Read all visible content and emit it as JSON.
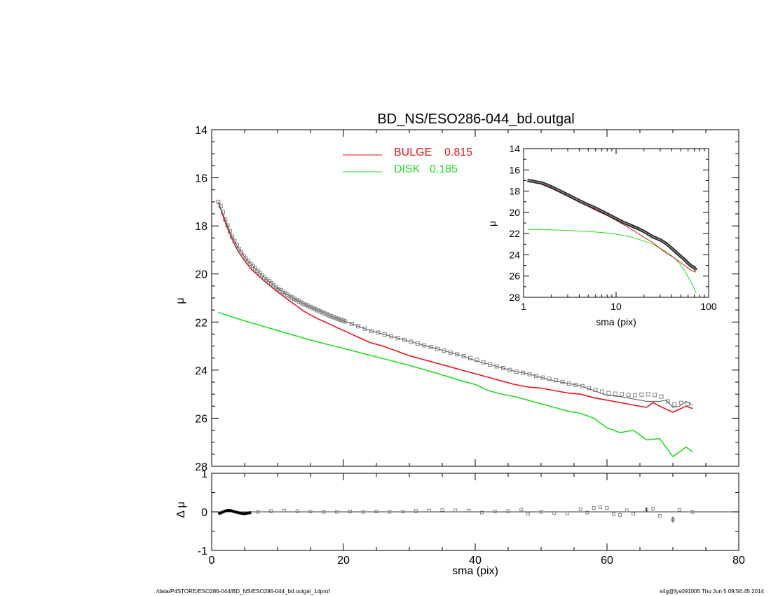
{
  "title": "BD_NS/ESO286-044_bd.outgal",
  "footer": {
    "left": "/data/P4STORE/ESO286-044/BD_NS/ESO286-044_bd.outgal_1dprof",
    "right": "s4g@fys091005  Thu Jun  5 09:56:45 2014"
  },
  "colors": {
    "bulge": "#e8141c",
    "disk": "#22dd22",
    "data": "#777777",
    "total": "#555555"
  },
  "chart_data": [
    {
      "id": "main-profile",
      "type": "line",
      "ylabel": "μ",
      "xlim": [
        0,
        80
      ],
      "ylim": [
        28,
        14
      ],
      "ytick_labels": [
        "14",
        "16",
        "18",
        "20",
        "22",
        "24",
        "26",
        "28"
      ],
      "legend": {
        "placement": "top-center",
        "entries": [
          {
            "label": "BULGE",
            "value": "0.815"
          },
          {
            "label": "DISK",
            "value": "0.185"
          }
        ]
      },
      "observed": {
        "x": [
          1.0,
          1.5,
          2.0,
          3.0,
          4.0,
          5.0,
          6.0,
          8.0,
          10.0,
          12.0,
          14.0,
          16.0,
          18.0,
          20.0,
          22.0,
          24.0,
          26.0,
          28.0,
          30.0,
          32.0,
          34.0,
          36.0,
          38.0,
          40.0,
          42.0,
          44.0,
          46.0,
          48.0,
          50.0,
          52.0,
          54.0,
          56.0,
          58.0,
          60.0,
          62.0,
          64.0,
          66.0,
          68.0,
          70.0,
          71.0,
          73.0
        ],
        "mu": [
          17.0,
          17.25,
          17.7,
          18.4,
          18.9,
          19.3,
          19.6,
          20.15,
          20.6,
          20.95,
          21.25,
          21.5,
          21.75,
          21.95,
          22.15,
          22.35,
          22.5,
          22.65,
          22.8,
          22.95,
          23.1,
          23.25,
          23.4,
          23.55,
          23.75,
          23.9,
          24.05,
          24.15,
          24.3,
          24.4,
          24.55,
          24.65,
          24.8,
          24.95,
          25.0,
          25.05,
          25.0,
          25.05,
          25.45,
          25.35,
          25.45
        ]
      },
      "total_model": {
        "x": [
          1.0,
          2.0,
          3.0,
          4.0,
          5.0,
          6.0,
          8.0,
          10.0,
          12.0,
          14.0,
          16.0,
          18.0,
          20.0,
          22.0,
          24.0,
          26.0,
          28.0,
          30.0,
          32.0,
          34.0,
          36.0,
          38.0,
          40.0,
          42.0,
          44.0,
          46.0,
          48.0,
          50.0,
          52.0,
          54.0,
          56.0,
          58.0,
          60.0,
          62.0,
          64.0,
          66.0,
          68.0,
          69.0,
          70.0,
          71.0,
          72.0,
          73.0
        ],
        "mu": [
          17.0,
          17.7,
          18.4,
          18.9,
          19.3,
          19.6,
          20.15,
          20.6,
          20.95,
          21.25,
          21.5,
          21.75,
          21.95,
          22.15,
          22.35,
          22.5,
          22.65,
          22.8,
          22.95,
          23.1,
          23.25,
          23.4,
          23.6,
          23.75,
          23.9,
          24.05,
          24.15,
          24.3,
          24.45,
          24.55,
          24.65,
          24.85,
          25.05,
          25.1,
          25.2,
          25.3,
          25.3,
          25.25,
          25.55,
          25.5,
          25.3,
          25.45
        ]
      },
      "series": [
        {
          "name": "BULGE",
          "x": [
            1.0,
            2.0,
            3.0,
            4.0,
            5.0,
            6.0,
            8.0,
            10.0,
            12.0,
            14.0,
            16.0,
            18.0,
            20.0,
            22.0,
            24.0,
            26.0,
            28.0,
            30.0,
            32.0,
            34.0,
            36.0,
            38.0,
            40.0,
            42.0,
            44.0,
            46.0,
            48.0,
            50.0,
            52.0,
            54.0,
            56.0,
            58.0,
            60.0,
            62.0,
            64.0,
            66.0,
            67.0,
            68.0,
            70.0,
            72.0,
            73.0
          ],
          "mu": [
            17.0,
            17.8,
            18.5,
            19.05,
            19.45,
            19.8,
            20.3,
            20.75,
            21.15,
            21.55,
            21.85,
            22.1,
            22.35,
            22.6,
            22.85,
            23.0,
            23.2,
            23.4,
            23.55,
            23.7,
            23.85,
            24.0,
            24.15,
            24.3,
            24.45,
            24.6,
            24.7,
            24.75,
            24.85,
            24.95,
            25.0,
            25.15,
            25.25,
            25.35,
            25.45,
            25.55,
            25.35,
            25.5,
            25.75,
            25.5,
            25.6
          ]
        },
        {
          "name": "DISK",
          "x": [
            1.0,
            5.0,
            10.0,
            15.0,
            20.0,
            25.0,
            30.0,
            35.0,
            38.0,
            40.0,
            42.0,
            44.0,
            46.0,
            48.0,
            50.0,
            52.0,
            54.0,
            56.0,
            58.0,
            60.0,
            62.0,
            64.0,
            66.0,
            68.0,
            70.0,
            72.0,
            73.0
          ],
          "mu": [
            21.6,
            21.95,
            22.35,
            22.75,
            23.1,
            23.45,
            23.8,
            24.2,
            24.45,
            24.6,
            24.85,
            25.0,
            25.1,
            25.25,
            25.4,
            25.55,
            25.7,
            25.8,
            26.0,
            26.4,
            26.6,
            26.5,
            26.9,
            26.85,
            27.6,
            27.2,
            27.4
          ]
        }
      ]
    },
    {
      "id": "residuals",
      "type": "scatter",
      "xlabel": "sma (pix)",
      "ylabel": "Δ μ",
      "xlim": [
        0,
        80
      ],
      "ylim": [
        -1,
        1
      ],
      "xtick_labels": [
        "0",
        "20",
        "40",
        "60",
        "80"
      ],
      "ytick_labels": [
        "1",
        "0",
        "-1"
      ],
      "dense_curve": {
        "x": [
          1.0,
          1.5,
          2.0,
          2.5,
          3.0,
          3.5,
          4.0,
          4.5,
          5.0,
          5.5,
          6.0
        ],
        "dmu": [
          -0.05,
          -0.02,
          0.02,
          0.04,
          0.03,
          0.0,
          -0.02,
          -0.04,
          -0.05,
          -0.03,
          -0.02
        ]
      },
      "points": {
        "x": [
          7,
          9,
          11,
          13,
          15,
          17,
          19,
          21,
          23,
          25,
          27,
          29,
          31,
          33,
          35,
          37,
          39,
          41,
          43,
          45,
          47,
          48,
          50,
          52,
          54,
          56,
          57,
          58,
          59,
          60,
          61,
          62,
          63,
          64,
          66,
          67,
          68,
          70,
          71,
          73
        ],
        "dmu": [
          0.0,
          0.02,
          0.03,
          0.02,
          0.01,
          0.0,
          0.0,
          0.01,
          0.0,
          0.01,
          0.0,
          0.01,
          0.02,
          0.03,
          0.05,
          0.04,
          0.03,
          -0.02,
          0.01,
          0.02,
          0.06,
          -0.05,
          0.0,
          -0.03,
          -0.04,
          0.07,
          -0.02,
          0.1,
          0.12,
          0.1,
          -0.06,
          -0.08,
          0.04,
          -0.05,
          0.06,
          0.08,
          -0.1,
          -0.2,
          0.05,
          0.0
        ]
      }
    },
    {
      "id": "inset",
      "type": "line",
      "xlabel": "sma (pix)",
      "ylabel": "μ",
      "xscale": "log",
      "xlim": [
        1,
        100
      ],
      "ylim": [
        28,
        14
      ],
      "xtick_labels": [
        "1",
        "10",
        "100"
      ],
      "ytick_labels": [
        "14",
        "16",
        "18",
        "20",
        "22",
        "24",
        "26",
        "28"
      ],
      "observed": {
        "x": [
          1.1,
          1.3,
          1.6,
          2.0,
          2.5,
          3.0,
          4.0,
          5.0,
          6.0,
          7.0,
          8.0,
          10.0,
          12.0,
          15.0,
          18.0,
          20.0,
          25.0,
          30.0,
          35.0,
          40.0,
          45.0,
          50.0,
          55.0,
          60.0,
          65.0,
          70.0,
          73.0
        ],
        "mu": [
          17.0,
          17.1,
          17.25,
          17.6,
          18.0,
          18.35,
          18.9,
          19.3,
          19.6,
          19.9,
          20.15,
          20.6,
          20.95,
          21.3,
          21.6,
          21.8,
          22.3,
          22.6,
          22.95,
          23.4,
          23.8,
          24.15,
          24.45,
          24.8,
          25.05,
          25.2,
          25.45
        ]
      },
      "series": [
        {
          "name": "BULGE",
          "x": [
            1.1,
            1.5,
            2.0,
            3.0,
            4.0,
            5.0,
            6.0,
            8.0,
            10.0,
            12.0,
            15.0,
            20.0,
            25.0,
            30.0,
            35.0,
            40.0,
            45.0,
            50.0,
            55.0,
            60.0,
            65.0,
            70.0,
            73.0
          ],
          "mu": [
            17.0,
            17.3,
            17.75,
            18.5,
            19.05,
            19.45,
            19.8,
            20.3,
            20.75,
            21.15,
            21.65,
            22.35,
            22.85,
            23.4,
            23.85,
            24.15,
            24.45,
            24.75,
            25.0,
            25.25,
            25.45,
            25.6,
            25.6
          ]
        },
        {
          "name": "DISK",
          "x": [
            1.1,
            2.0,
            3.0,
            5.0,
            7.0,
            10.0,
            15.0,
            20.0,
            25.0,
            30.0,
            35.0,
            40.0,
            45.0,
            50.0,
            55.0,
            60.0,
            65.0,
            70.0,
            73.0
          ],
          "mu": [
            21.6,
            21.65,
            21.7,
            21.8,
            21.9,
            22.05,
            22.35,
            22.7,
            23.0,
            23.4,
            23.7,
            24.1,
            24.5,
            25.0,
            25.5,
            26.1,
            26.6,
            27.2,
            27.6
          ]
        }
      ]
    }
  ]
}
